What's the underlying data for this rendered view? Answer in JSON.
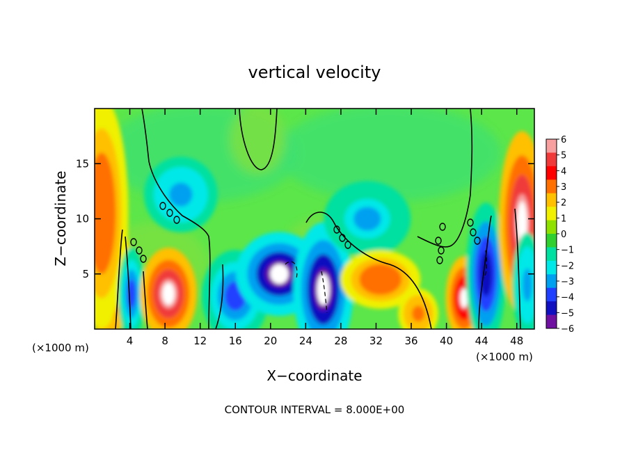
{
  "chart_data": {
    "type": "heatmap",
    "title": "vertical velocity",
    "xlabel": "X−coordinate",
    "ylabel": "Z−coordinate",
    "x_unit_left": "(×1000 m)",
    "x_unit_right": "(×1000 m)",
    "footer": "CONTOUR INTERVAL = 8.000E+00",
    "xlim": [
      0,
      50
    ],
    "ylim": [
      0,
      20
    ],
    "x_ticks": [
      4,
      8,
      12,
      16,
      20,
      24,
      28,
      32,
      36,
      40,
      44,
      48
    ],
    "x_tick_labels": [
      "4",
      "8",
      "12",
      "16",
      "20",
      "24",
      "28",
      "32",
      "36",
      "40",
      "44",
      "48"
    ],
    "y_ticks": [
      5,
      10,
      15
    ],
    "y_tick_labels": [
      "5",
      "10",
      "15"
    ],
    "colorbar": {
      "ticks": [
        6,
        5,
        4,
        3,
        2,
        1,
        0,
        -1,
        -2,
        -3,
        -4,
        -5,
        -6
      ],
      "tick_labels": [
        "6",
        "5",
        "4",
        "3",
        "2",
        "1",
        "0",
        "−1",
        "−2",
        "−3",
        "−4",
        "−5",
        "−6"
      ],
      "colors": [
        "#f8a0a0",
        "#f03a3a",
        "#ff0000",
        "#ff7000",
        "#ffc000",
        "#f0f000",
        "#90e000",
        "#30d030",
        "#00e0a0",
        "#00e8e8",
        "#00a0f0",
        "#2040ff",
        "#1010c0",
        "#7010a0"
      ]
    },
    "features": [
      {
        "x": 1.5,
        "z": 5.2,
        "w": 1.4,
        "h": 3.2,
        "v": 5.0,
        "sign": "updraft"
      },
      {
        "x": 0.8,
        "z": 10.5,
        "w": 1.6,
        "h": 5.5,
        "v": 3.2,
        "sign": "updraft"
      },
      {
        "x": 4.2,
        "z": 3.2,
        "w": 0.8,
        "h": 2.2,
        "v": -4.0,
        "sign": "downdraft"
      },
      {
        "x": 8.4,
        "z": 3.2,
        "w": 1.7,
        "h": 2.2,
        "v": 5.2,
        "sign": "updraft"
      },
      {
        "x": 9.8,
        "z": 12.2,
        "w": 2.2,
        "h": 1.8,
        "v": -3.0,
        "sign": "downdraft"
      },
      {
        "x": 16.0,
        "z": 3.0,
        "w": 2.0,
        "h": 2.2,
        "v": -3.5,
        "sign": "downdraft"
      },
      {
        "x": 21.0,
        "z": 5.0,
        "w": 2.6,
        "h": 2.0,
        "v": -5.4,
        "sign": "downdraft"
      },
      {
        "x": 26.0,
        "z": 3.6,
        "w": 1.8,
        "h": 3.2,
        "v": -5.2,
        "sign": "downdraft"
      },
      {
        "x": 31.0,
        "z": 10.0,
        "w": 2.6,
        "h": 1.8,
        "v": -2.6,
        "sign": "downdraft"
      },
      {
        "x": 32.5,
        "z": 4.5,
        "w": 2.4,
        "h": 1.4,
        "v": 3.2,
        "sign": "updraft"
      },
      {
        "x": 36.8,
        "z": 1.4,
        "w": 1.2,
        "h": 1.2,
        "v": 3.0,
        "sign": "updraft"
      },
      {
        "x": 42.0,
        "z": 2.8,
        "w": 1.1,
        "h": 2.0,
        "v": 5.0,
        "sign": "updraft"
      },
      {
        "x": 44.5,
        "z": 5.0,
        "w": 1.2,
        "h": 3.4,
        "v": -4.6,
        "sign": "downdraft"
      },
      {
        "x": 48.6,
        "z": 9.6,
        "w": 1.4,
        "h": 4.4,
        "v": 5.2,
        "sign": "updraft"
      },
      {
        "x": 49.2,
        "z": 4.0,
        "w": 0.9,
        "h": 2.5,
        "v": -3.0,
        "sign": "downdraft"
      }
    ]
  }
}
